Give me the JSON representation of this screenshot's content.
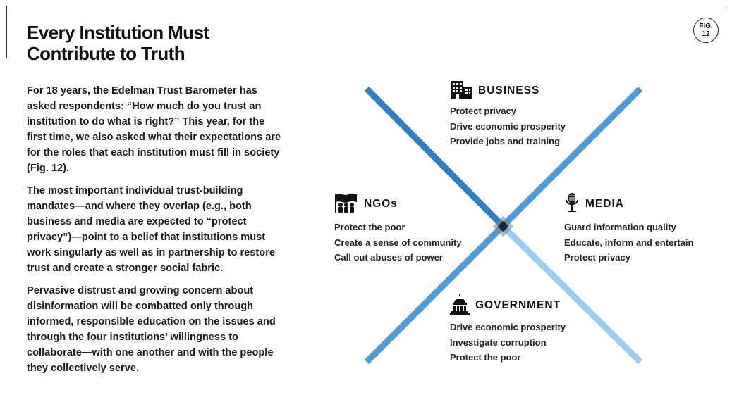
{
  "header": {
    "title_line1": "Every Institution Must",
    "title_line2": "Contribute to Truth",
    "fig_label": "FIG.",
    "fig_number": "12"
  },
  "body": {
    "paragraphs": [
      "For 18 years, the Edelman Trust Barometer has asked respondents: “How much do you trust an institution to do what is right?” This year, for the first time, we also asked what their expectations are for the roles that each institution must fill in society (Fig. 12).",
      "The most important individual trust-building mandates—and where they overlap (e.g., both business and media are expected to “protect privacy”)—point to a belief that institutions must work singularly as well as in partnership to restore trust and create a stronger social fabric.",
      "Pervasive distrust and growing concern about disinformation will be combatted only through informed, responsible education on the issues and through the four institutions’ willingness to collaborate—with one another and with the people they collectively serve."
    ]
  },
  "diagram": {
    "colors": {
      "arm_dark": "#2f7fc4",
      "arm_mid": "#4f9bd6",
      "arm_light": "#9ccdee",
      "center": "#1b2a3a"
    },
    "institutions": {
      "business": {
        "name": "BUSINESS",
        "icon": "office-building-icon",
        "roles": [
          "Protect privacy",
          "Drive economic prosperity",
          "Provide jobs and training"
        ]
      },
      "ngos": {
        "name": "NGOs",
        "icon": "people-flag-icon",
        "roles": [
          "Protect the poor",
          "Create a sense of community",
          "Call out abuses of power"
        ]
      },
      "media": {
        "name": "MEDIA",
        "icon": "microphone-icon",
        "roles": [
          "Guard information quality",
          "Educate, inform and entertain",
          "Protect privacy"
        ]
      },
      "government": {
        "name": "GOVERNMENT",
        "icon": "capitol-building-icon",
        "roles": [
          "Drive economic prosperity",
          "Investigate corruption",
          "Protect the poor"
        ]
      }
    }
  }
}
